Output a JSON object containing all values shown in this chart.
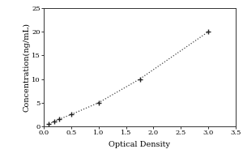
{
  "x_data": [
    0.093,
    0.186,
    0.279,
    0.5,
    1.0,
    1.75,
    3.0
  ],
  "y_data": [
    0.5,
    1.0,
    1.5,
    2.5,
    5.0,
    10.0,
    20.0
  ],
  "xlabel": "Optical Density",
  "ylabel": "Concentration(ng/mL)",
  "xlim": [
    0,
    3.5
  ],
  "ylim": [
    0,
    25
  ],
  "xticks": [
    0,
    0.5,
    1.0,
    1.5,
    2.0,
    2.5,
    3.0,
    3.5
  ],
  "yticks": [
    0,
    5,
    10,
    15,
    20,
    25
  ],
  "line_color": "#444444",
  "marker_style": "+",
  "marker_color": "#222222",
  "line_style": "dotted",
  "marker_size": 5,
  "xlabel_fontsize": 7,
  "ylabel_fontsize": 7,
  "tick_fontsize": 6,
  "background_color": "#ffffff",
  "figure_bg": "#ffffff",
  "font_family": "DejaVu Serif"
}
